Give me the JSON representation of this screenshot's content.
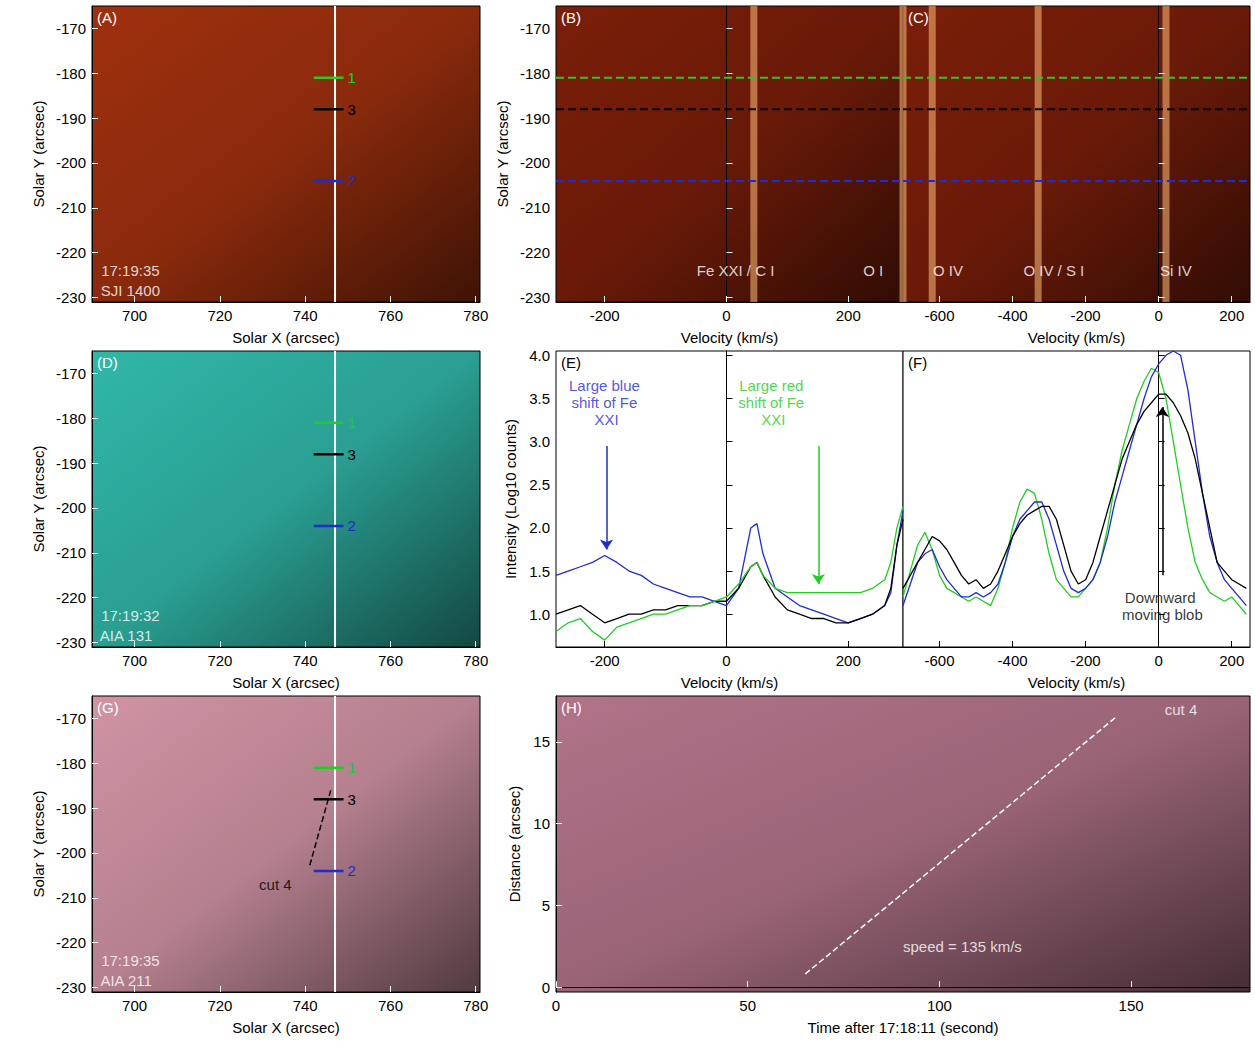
{
  "chart_data": [
    {
      "panel": "(A)",
      "type": "image",
      "color": "#8a2a0c",
      "xlabel": "Solar X (arcsec)",
      "ylabel": "Solar Y (arcsec)",
      "xlim": [
        690,
        781
      ],
      "xticks": [
        700,
        720,
        740,
        760,
        780
      ],
      "ylim": [
        -231,
        -165
      ],
      "yticks": [
        -230,
        -220,
        -210,
        -200,
        -190,
        -180,
        -170
      ],
      "slit_x": 747,
      "markers": [
        {
          "label": "1",
          "y": -181,
          "x": [
            742,
            749
          ],
          "color": "#22cc22"
        },
        {
          "label": "3",
          "y": -188,
          "x": [
            742,
            749
          ],
          "color": "#000000"
        },
        {
          "label": "2",
          "y": -204,
          "x": [
            742,
            749
          ],
          "color": "#1f2bd6"
        }
      ],
      "annotations": [
        {
          "text": "17:19:35",
          "x": 699,
          "y": -224,
          "color": "#ffffff"
        },
        {
          "text": "SJI 1400",
          "x": 699,
          "y": -228.5,
          "color": "#ffffff"
        }
      ]
    },
    {
      "panel": "(B)",
      "type": "spectrum",
      "color": "#6a1a08",
      "xlabel": "Velocity (km/s)",
      "ylabel": "Solar Y (arcsec)",
      "xlim": [
        -280,
        290
      ],
      "xticks": [
        -200,
        0,
        200
      ],
      "ylim": [
        -231,
        -165
      ],
      "yticks": [
        -230,
        -220,
        -210,
        -200,
        -190,
        -180,
        -170
      ],
      "emission_lines": [
        45,
        290
      ],
      "levels": [
        {
          "y": -181,
          "color": "#22cc22"
        },
        {
          "y": -188,
          "color": "#000000"
        },
        {
          "y": -204,
          "color": "#1f2bd6"
        }
      ],
      "annotations": [
        {
          "text": "Fe XXI / C I",
          "x": 15,
          "y": -224,
          "color": "#ffffff"
        },
        {
          "text": "O I",
          "x": 241,
          "y": -224,
          "color": "#ffffff"
        }
      ]
    },
    {
      "panel": "(C)",
      "type": "spectrum",
      "color": "#6a1a08",
      "tick_labels": "x",
      "xlabel": "Velocity (km/s)",
      "xlim": [
        -700,
        250
      ],
      "xticks": [
        -600,
        -400,
        -200,
        0,
        200
      ],
      "ylim": [
        -231,
        -165
      ],
      "yticks": [
        -230,
        -220,
        -210,
        -200,
        -190,
        -180,
        -170
      ],
      "emission_lines": [
        -620,
        -330,
        20
      ],
      "levels": [
        {
          "y": -181,
          "color": "#22cc22"
        },
        {
          "y": -188,
          "color": "#000000"
        },
        {
          "y": -204,
          "color": "#1f2bd6"
        }
      ],
      "annotations": [
        {
          "text": "O IV",
          "x": -577,
          "y": -224,
          "color": "#ffffff"
        },
        {
          "text": "O IV / S I",
          "x": -287,
          "y": -224,
          "color": "#ffffff"
        },
        {
          "text": "Si IV",
          "x": 47,
          "y": -224,
          "color": "#ffffff"
        }
      ]
    },
    {
      "panel": "(D)",
      "type": "image",
      "color": "#2a9f92",
      "xlabel": "Solar X (arcsec)",
      "ylabel": "Solar Y (arcsec)",
      "xlim": [
        690,
        781
      ],
      "xticks": [
        700,
        720,
        740,
        760,
        780
      ],
      "ylim": [
        -231,
        -165
      ],
      "yticks": [
        -230,
        -220,
        -210,
        -200,
        -190,
        -180,
        -170
      ],
      "slit_x": 747,
      "markers": [
        {
          "label": "1",
          "y": -181,
          "x": [
            742,
            749
          ],
          "color": "#22cc22"
        },
        {
          "label": "3",
          "y": -188,
          "x": [
            742,
            749
          ],
          "color": "#000000"
        },
        {
          "label": "2",
          "y": -204,
          "x": [
            742,
            749
          ],
          "color": "#1f2bd6"
        }
      ],
      "annotations": [
        {
          "text": "17:19:32",
          "x": 699,
          "y": -224,
          "color": "#ffffff"
        },
        {
          "text": "AIA 131",
          "x": 698,
          "y": -228.5,
          "color": "#ffffff"
        }
      ]
    },
    {
      "panel": "(E)",
      "type": "line",
      "xlabel": "Velocity (km/s)",
      "ylabel": "Intensity (Log10 counts)",
      "xlim": [
        -280,
        290
      ],
      "xticks": [
        -200,
        0,
        200
      ],
      "ylim": [
        0.62,
        4.05
      ],
      "yticks": [
        {
          "value": 1,
          "label": "1.0"
        },
        {
          "value": 1.5,
          "label": "1.5"
        },
        {
          "value": 2,
          "label": "2.0"
        },
        {
          "value": 2.5,
          "label": "2.5"
        },
        {
          "value": 3,
          "label": "3.0"
        },
        {
          "value": 3.5,
          "label": "3.5"
        },
        {
          "value": 4,
          "label": "4.0"
        }
      ],
      "x": [
        -280,
        -260,
        -240,
        -220,
        -200,
        -180,
        -160,
        -140,
        -120,
        -100,
        -80,
        -60,
        -40,
        -20,
        0,
        20,
        40,
        50,
        60,
        80,
        100,
        120,
        140,
        160,
        180,
        200,
        220,
        240,
        260,
        270,
        280,
        290
      ],
      "series": [
        {
          "color": "#1f2bd6",
          "values": [
            1.45,
            1.5,
            1.55,
            1.6,
            1.68,
            1.6,
            1.5,
            1.45,
            1.35,
            1.3,
            1.25,
            1.2,
            1.2,
            1.15,
            1.1,
            1.3,
            2.0,
            2.05,
            1.7,
            1.3,
            1.2,
            1.1,
            1.05,
            1.0,
            0.95,
            0.9,
            0.95,
            1.0,
            1.1,
            1.25,
            1.8,
            2.2
          ]
        },
        {
          "color": "#000000",
          "values": [
            1.0,
            1.05,
            1.1,
            1.0,
            0.9,
            0.95,
            1.0,
            1.0,
            1.05,
            1.05,
            1.1,
            1.1,
            1.1,
            1.15,
            1.15,
            1.3,
            1.55,
            1.6,
            1.45,
            1.2,
            1.05,
            1.0,
            0.95,
            0.95,
            0.9,
            0.9,
            0.95,
            1.0,
            1.1,
            1.3,
            1.8,
            2.1
          ]
        },
        {
          "color": "#22cc22",
          "values": [
            0.8,
            0.9,
            0.95,
            0.8,
            0.7,
            0.85,
            0.9,
            0.95,
            1.0,
            1.0,
            1.05,
            1.1,
            1.1,
            1.15,
            1.2,
            1.35,
            1.55,
            1.6,
            1.45,
            1.3,
            1.25,
            1.25,
            1.25,
            1.25,
            1.25,
            1.25,
            1.25,
            1.3,
            1.4,
            1.6,
            2.0,
            2.25
          ]
        }
      ],
      "annotations": [
        {
          "text": "Large blue shift of Fe XXI",
          "x": -197,
          "y": 3.45,
          "color": "#1f2bd6"
        },
        {
          "text": "Large red shift of Fe XXI",
          "x": 77,
          "y": 3.45,
          "color": "#22cc22"
        }
      ],
      "arrows": [
        {
          "x": -197,
          "y": [
            2.95,
            1.75
          ],
          "color": "#1f2bd6"
        },
        {
          "x": 151,
          "y": [
            2.95,
            1.35
          ],
          "color": "#22cc22"
        }
      ]
    },
    {
      "panel": "(F)",
      "type": "line",
      "tick_labels": "x",
      "xlabel": "Velocity (km/s)",
      "xlim": [
        -700,
        250
      ],
      "xticks": [
        -600,
        -400,
        -200,
        0,
        200
      ],
      "ylim": [
        0.62,
        4.05
      ],
      "yticks": [
        {
          "value": 1,
          "label": "1.0"
        },
        {
          "value": 1.5,
          "label": "1.5"
        },
        {
          "value": 2,
          "label": "2.0"
        },
        {
          "value": 2.5,
          "label": "2.5"
        },
        {
          "value": 3,
          "label": "3.0"
        },
        {
          "value": 3.5,
          "label": "3.5"
        },
        {
          "value": 4,
          "label": "4.0"
        }
      ],
      "x": [
        -700,
        -680,
        -660,
        -640,
        -620,
        -600,
        -580,
        -560,
        -540,
        -520,
        -500,
        -480,
        -460,
        -440,
        -420,
        -400,
        -380,
        -360,
        -340,
        -320,
        -300,
        -280,
        -260,
        -240,
        -220,
        -200,
        -180,
        -160,
        -140,
        -120,
        -100,
        -80,
        -60,
        -40,
        -20,
        0,
        20,
        40,
        60,
        80,
        100,
        120,
        140,
        160,
        180,
        200,
        220,
        240
      ],
      "series": [
        {
          "color": "#22cc22",
          "values": [
            1.2,
            1.5,
            1.8,
            1.95,
            1.75,
            1.45,
            1.3,
            1.25,
            1.2,
            1.15,
            1.2,
            1.15,
            1.1,
            1.3,
            1.6,
            2.0,
            2.3,
            2.45,
            2.4,
            2.1,
            1.7,
            1.4,
            1.3,
            1.2,
            1.2,
            1.3,
            1.4,
            1.6,
            2.0,
            2.5,
            2.9,
            3.2,
            3.5,
            3.7,
            3.85,
            3.8,
            3.5,
            3.0,
            2.5,
            2.0,
            1.6,
            1.4,
            1.25,
            1.2,
            1.15,
            1.2,
            1.1,
            1.0
          ]
        },
        {
          "color": "#1f2bd6",
          "values": [
            1.1,
            1.35,
            1.6,
            1.7,
            1.75,
            1.55,
            1.4,
            1.3,
            1.2,
            1.2,
            1.25,
            1.2,
            1.25,
            1.35,
            1.6,
            1.9,
            2.1,
            2.2,
            2.3,
            2.3,
            2.1,
            1.8,
            1.5,
            1.3,
            1.25,
            1.3,
            1.4,
            1.6,
            1.9,
            2.3,
            2.6,
            2.9,
            3.2,
            3.5,
            3.75,
            3.9,
            4.0,
            4.05,
            4.0,
            3.6,
            3.0,
            2.4,
            1.9,
            1.6,
            1.4,
            1.3,
            1.2,
            1.1
          ]
        },
        {
          "color": "#000000",
          "values": [
            1.3,
            1.45,
            1.6,
            1.75,
            1.9,
            1.85,
            1.75,
            1.6,
            1.45,
            1.35,
            1.4,
            1.3,
            1.35,
            1.5,
            1.7,
            1.9,
            2.05,
            2.15,
            2.2,
            2.25,
            2.25,
            2.1,
            1.8,
            1.5,
            1.35,
            1.4,
            1.6,
            1.9,
            2.2,
            2.5,
            2.8,
            3.0,
            3.2,
            3.35,
            3.45,
            3.55,
            3.55,
            3.45,
            3.3,
            3.1,
            2.8,
            2.4,
            2.0,
            1.6,
            1.5,
            1.4,
            1.35,
            1.3
          ]
        }
      ],
      "annotations": [
        {
          "text": "Downward moving blob",
          "x": 10,
          "y": 1.1,
          "color": "#000000"
        }
      ],
      "arrows": [
        {
          "x": 10,
          "y": [
            1.45,
            3.4
          ],
          "color": "#000000"
        }
      ]
    },
    {
      "panel": "(G)",
      "type": "image",
      "color": "#b5808f",
      "xlabel": "Solar X (arcsec)",
      "ylabel": "Solar Y (arcsec)",
      "xlim": [
        690,
        781
      ],
      "xticks": [
        700,
        720,
        740,
        760,
        780
      ],
      "ylim": [
        -231,
        -165
      ],
      "yticks": [
        -230,
        -220,
        -210,
        -200,
        -190,
        -180,
        -170
      ],
      "slit_x": 747,
      "markers": [
        {
          "label": "1",
          "y": -181,
          "x": [
            742,
            749
          ],
          "color": "#22cc22"
        },
        {
          "label": "3",
          "y": -188,
          "x": [
            742,
            749
          ],
          "color": "#000000"
        },
        {
          "label": "2",
          "y": -204,
          "x": [
            742,
            749
          ],
          "color": "#1f2bd6"
        }
      ],
      "cut": {
        "x": [
          746,
          741
        ],
        "y": [
          -186,
          -203
        ],
        "color": "#000000"
      },
      "annotations": [
        {
          "text": "cut 4",
          "x": 733,
          "y": -207,
          "color": "#000000"
        },
        {
          "text": "17:19:35",
          "x": 699,
          "y": -224,
          "color": "#ffffff"
        },
        {
          "text": "AIA 211",
          "x": 698,
          "y": -228.5,
          "color": "#ffffff"
        }
      ]
    },
    {
      "panel": "(H)",
      "type": "image",
      "color": "#9a6477",
      "xlabel": "Time after 17:18:11 (second)",
      "ylabel": "Distance (arcsec)",
      "xlim": [
        0,
        181
      ],
      "xticks": [
        0,
        50,
        100,
        150
      ],
      "ylim": [
        -0.3,
        17.8
      ],
      "yticks": [
        0,
        5,
        10,
        15
      ],
      "cut": {
        "x": [
          65,
          146
        ],
        "y": [
          0.8,
          16.5
        ],
        "color": "#ffffff"
      },
      "annotations": [
        {
          "text": "cut 4",
          "x": 163,
          "y": 17,
          "color": "#ffffff"
        },
        {
          "text": "speed = 135 km/s",
          "x": 106,
          "y": 2.5,
          "color": "#ffffff"
        }
      ]
    }
  ]
}
